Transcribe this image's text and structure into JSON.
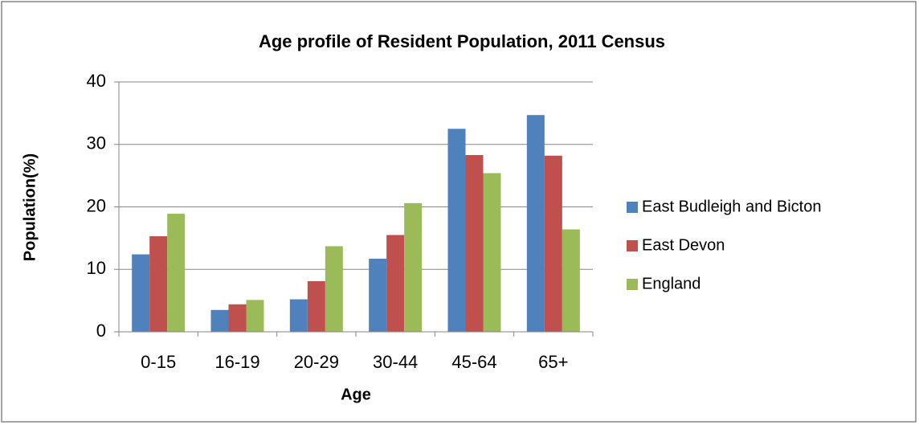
{
  "chart_data": {
    "type": "bar",
    "title": "Age profile of Resident Population,  2011 Census",
    "x_label": "Age",
    "y_label": "Population(%)",
    "categories": [
      "0-15",
      "16-19",
      "20-29",
      "30-44",
      "45-64",
      "65+"
    ],
    "series": [
      {
        "name": "East Budleigh and Bicton",
        "color": "#4f81bd",
        "values": [
          12.4,
          3.5,
          5.2,
          11.7,
          32.5,
          34.7
        ]
      },
      {
        "name": "East Devon",
        "color": "#c0504d",
        "values": [
          15.3,
          4.4,
          8.1,
          15.5,
          28.3,
          28.2
        ]
      },
      {
        "name": "England",
        "color": "#9bbb59",
        "values": [
          18.9,
          5.1,
          13.7,
          20.6,
          25.4,
          16.4
        ]
      }
    ],
    "ylim": [
      0,
      40
    ],
    "yticks": [
      0,
      10,
      20,
      30,
      40
    ],
    "grid": true,
    "legend": "right"
  }
}
